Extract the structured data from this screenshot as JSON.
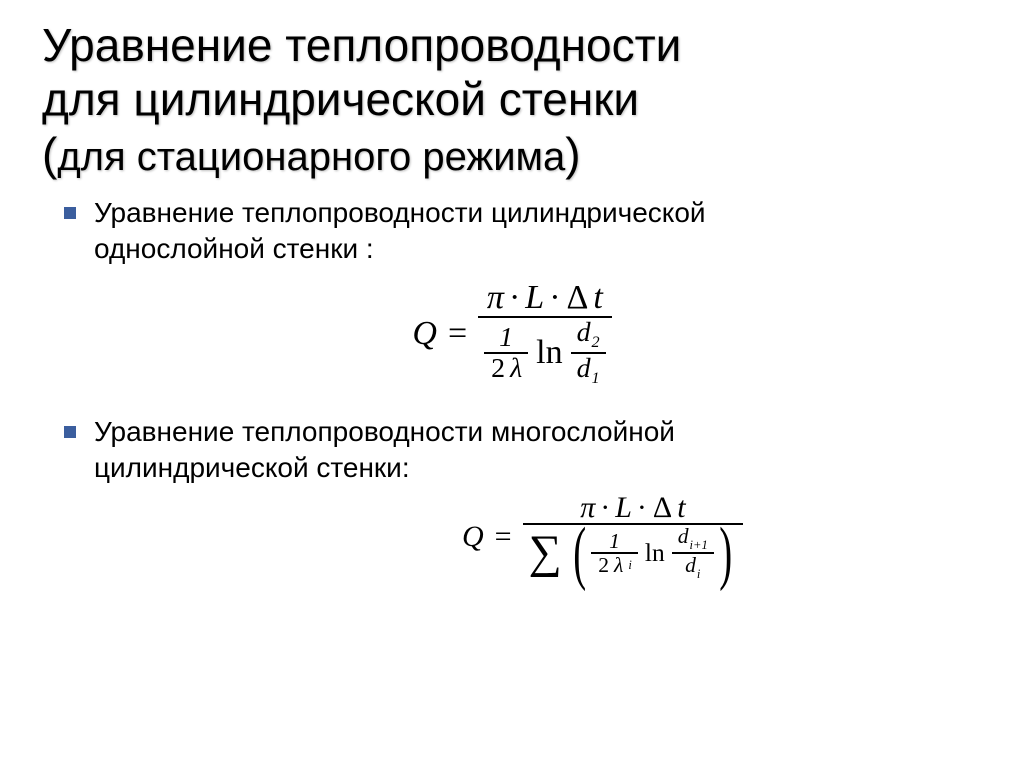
{
  "title_line1": "Уравнение теплопроводности",
  "title_line2": "для цилиндрической стенки",
  "title_line3_open": "(",
  "title_line3_text": "для стационарного режима",
  "title_line3_close": ")",
  "bullet1_line1": "Уравнение теплопроводности цилиндрической",
  "bullet1_line2": "однослойной стенки :",
  "bullet2_line1": "Уравнение теплопроводности многослойной",
  "bullet2_line2": "цилиндрической стенки:",
  "symbols": {
    "Q": "Q",
    "eq": "=",
    "pi": "π",
    "dot": "·",
    "L": "L",
    "Delta": "Δ",
    "t": "t",
    "one": "1",
    "two": "2",
    "lambda": "λ",
    "ln": "ln",
    "d": "d",
    "sub1": "1",
    "sub2": "2",
    "sub_i": "i",
    "sub_ip1": "i+1",
    "sum": "∑",
    "lpar": "(",
    "rpar": ")"
  },
  "style": {
    "bullet_color": "#3b5e9e",
    "title_fontsize": 46,
    "body_fontsize": 28,
    "formula1_fontsize": 34,
    "formula2_fontsize": 30,
    "background": "#ffffff",
    "text_color": "#000000"
  }
}
